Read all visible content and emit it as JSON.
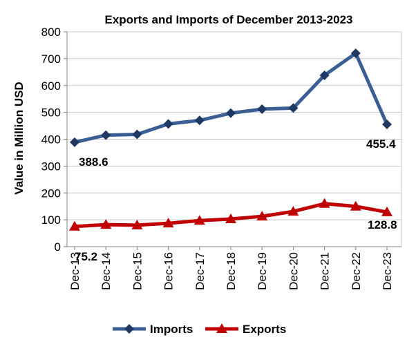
{
  "chart_data": {
    "type": "line",
    "title": "Exports and Imports of December 2013-2023",
    "xlabel": "",
    "ylabel": "Value in  Million  USD",
    "ylim": [
      0,
      800
    ],
    "yticks": [
      0,
      100,
      200,
      300,
      400,
      500,
      600,
      700,
      800
    ],
    "categories": [
      "Dec-13",
      "Dec-14",
      "Dec-15",
      "Dec-16",
      "Dec-17",
      "Dec-18",
      "Dec-19",
      "Dec-20",
      "Dec-21",
      "Dec-22",
      "Dec-23"
    ],
    "grid": true,
    "legend_position": "bottom",
    "series": [
      {
        "name": "Imports",
        "color": "#3B5F94",
        "marker": "diamond",
        "values": [
          388.6,
          415,
          418,
          457,
          470,
          497,
          512,
          516,
          638,
          720,
          455.4
        ]
      },
      {
        "name": "Exports",
        "color": "#C00000",
        "marker": "triangle",
        "values": [
          75.2,
          82,
          80,
          87,
          97,
          103,
          113,
          131,
          160,
          150,
          128.8
        ]
      }
    ],
    "data_labels": [
      {
        "text": "388.6"
      },
      {
        "text": "455.4"
      },
      {
        "text": "75.2"
      },
      {
        "text": "128.8"
      }
    ]
  }
}
